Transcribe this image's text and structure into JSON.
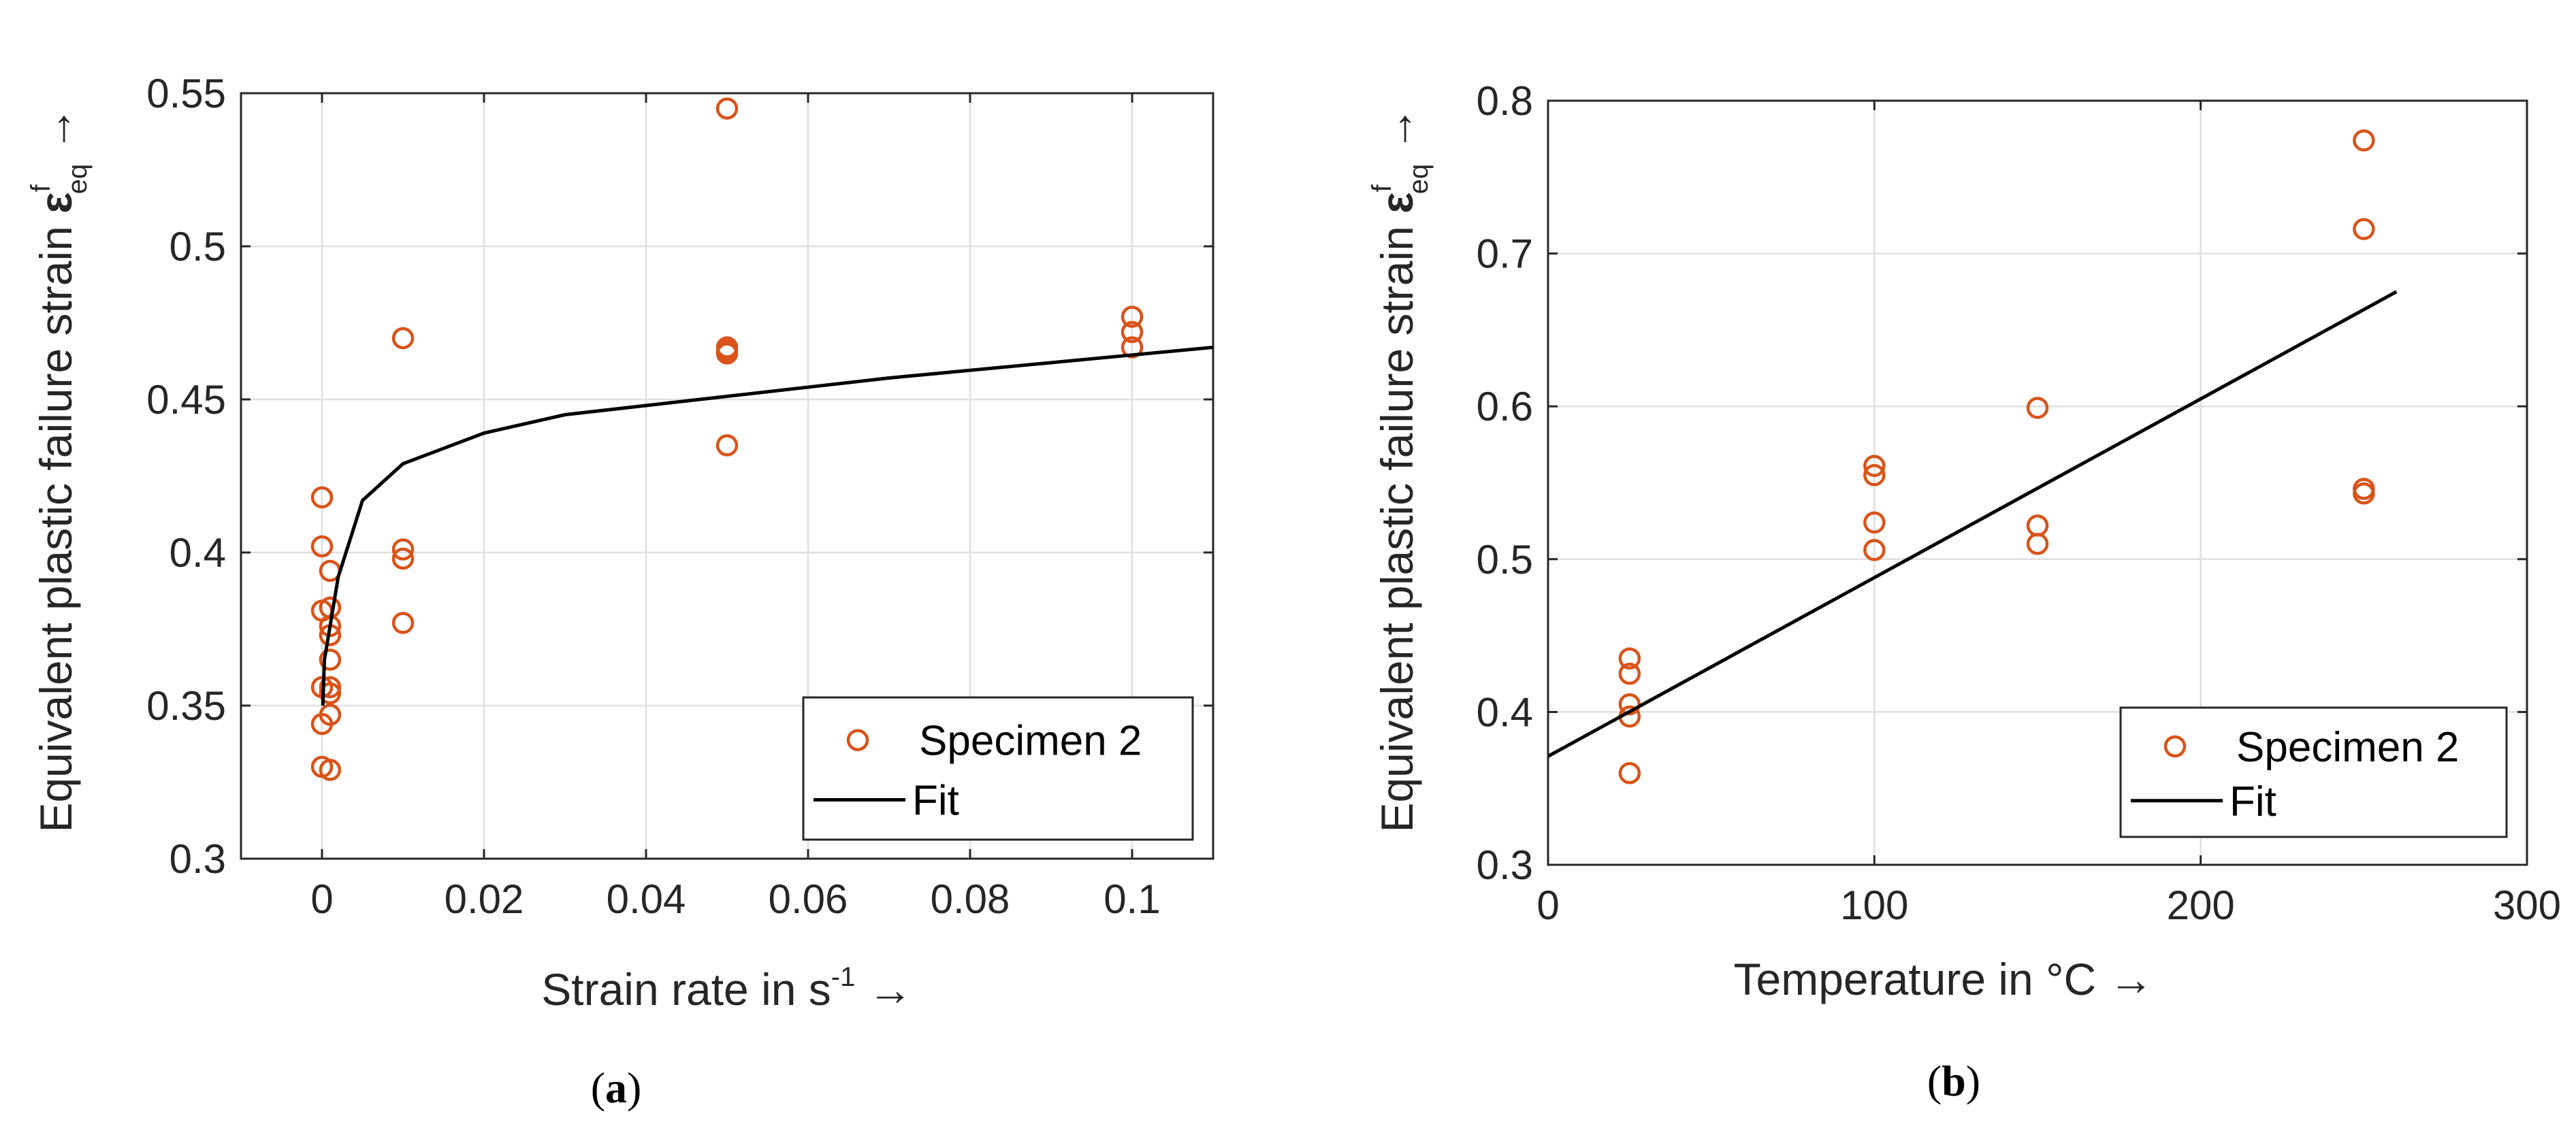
{
  "chart_data": [
    {
      "type": "scatter",
      "panel_label": "a",
      "xlabel_text": "Strain rate in s",
      "xlabel_sup": "-1",
      "xlabel_arrow": "→",
      "ylabel_text": "Equivalent plastic failure strain ",
      "ylabel_symbol": "ε",
      "ylabel_sup": "f",
      "ylabel_sub": "eq",
      "ylabel_arrow": "→",
      "xlim": [
        -0.01,
        0.11
      ],
      "ylim": [
        0.3,
        0.55
      ],
      "xticks": [
        0,
        0.02,
        0.04,
        0.06,
        0.08,
        0.1
      ],
      "xtick_labels": [
        "0",
        "0.02",
        "0.04",
        "0.06",
        "0.08",
        "0.1"
      ],
      "yticks": [
        0.3,
        0.35,
        0.4,
        0.45,
        0.5,
        0.55
      ],
      "ytick_labels": [
        "0.3",
        "0.35",
        "0.4",
        "0.45",
        "0.5",
        "0.55"
      ],
      "grid": true,
      "legend_position": "bottom-right",
      "series": [
        {
          "name": "Specimen 2",
          "kind": "markers",
          "color": "#d95319",
          "points": [
            [
              0,
              0.418
            ],
            [
              0,
              0.402
            ],
            [
              0,
              0.381
            ],
            [
              0,
              0.356
            ],
            [
              0,
              0.344
            ],
            [
              0,
              0.33
            ],
            [
              0.001,
              0.394
            ],
            [
              0.001,
              0.382
            ],
            [
              0.001,
              0.376
            ],
            [
              0.001,
              0.373
            ],
            [
              0.001,
              0.365
            ],
            [
              0.001,
              0.356
            ],
            [
              0.001,
              0.354
            ],
            [
              0.001,
              0.347
            ],
            [
              0.001,
              0.329
            ],
            [
              0.01,
              0.47
            ],
            [
              0.01,
              0.401
            ],
            [
              0.01,
              0.398
            ],
            [
              0.01,
              0.377
            ],
            [
              0.05,
              0.545
            ],
            [
              0.05,
              0.467
            ],
            [
              0.05,
              0.466
            ],
            [
              0.05,
              0.465
            ],
            [
              0.05,
              0.435
            ],
            [
              0.1,
              0.477
            ],
            [
              0.1,
              0.472
            ],
            [
              0.1,
              0.467
            ]
          ]
        },
        {
          "name": "Fit",
          "kind": "line",
          "color": "#000000",
          "curve": "log",
          "fit_points": [
            [
              0.0001,
              0.35
            ],
            [
              0.0003,
              0.365
            ],
            [
              0.001,
              0.376
            ],
            [
              0.002,
              0.392
            ],
            [
              0.005,
              0.417
            ],
            [
              0.01,
              0.429
            ],
            [
              0.02,
              0.439
            ],
            [
              0.03,
              0.445
            ],
            [
              0.05,
              0.451
            ],
            [
              0.07,
              0.457
            ],
            [
              0.09,
              0.462
            ],
            [
              0.11,
              0.467
            ]
          ]
        }
      ]
    },
    {
      "type": "scatter",
      "panel_label": "b",
      "xlabel_text": "Temperature in °C",
      "xlabel_arrow": "→",
      "ylabel_text": "Equivalent plastic failure strain ",
      "ylabel_symbol": "ε",
      "ylabel_sup": "f",
      "ylabel_sub": "eq",
      "ylabel_arrow": "→",
      "xlim": [
        0,
        300
      ],
      "ylim": [
        0.3,
        0.8
      ],
      "xticks": [
        0,
        100,
        200,
        300
      ],
      "xtick_labels": [
        "0",
        "100",
        "200",
        "300"
      ],
      "yticks": [
        0.3,
        0.4,
        0.5,
        0.6,
        0.7,
        0.8
      ],
      "ytick_labels": [
        "0.3",
        "0.4",
        "0.5",
        "0.6",
        "0.7",
        "0.8"
      ],
      "grid": true,
      "legend_position": "bottom-right",
      "series": [
        {
          "name": "Specimen 2",
          "kind": "markers",
          "color": "#d95319",
          "points": [
            [
              25,
              0.435
            ],
            [
              25,
              0.425
            ],
            [
              25,
              0.405
            ],
            [
              25,
              0.397
            ],
            [
              25,
              0.36
            ],
            [
              100,
              0.561
            ],
            [
              100,
              0.555
            ],
            [
              100,
              0.524
            ],
            [
              100,
              0.506
            ],
            [
              150,
              0.599
            ],
            [
              150,
              0.522
            ],
            [
              150,
              0.51
            ],
            [
              250,
              0.774
            ],
            [
              250,
              0.716
            ],
            [
              250,
              0.546
            ],
            [
              250,
              0.543
            ]
          ]
        },
        {
          "name": "Fit",
          "kind": "line",
          "color": "#000000",
          "curve": "linear",
          "fit_points": [
            [
              0,
              0.371
            ],
            [
              260,
              0.675
            ]
          ]
        }
      ]
    }
  ]
}
